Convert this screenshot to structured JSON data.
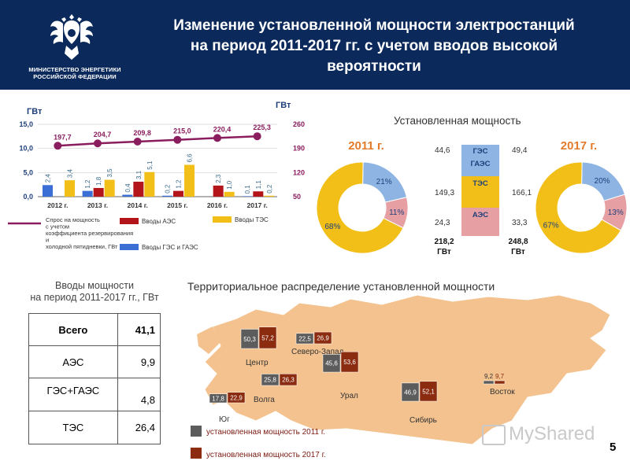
{
  "header": {
    "ministry": "МИНИСТЕРСТВО ЭНЕРГЕТИКИ РОССИЙСКОЙ ФЕДЕРАЦИИ",
    "title_lines": [
      "Изменение установленной мощности электростанций",
      "на период 2011-2017 гг. с учетом вводов высокой",
      "вероятности"
    ],
    "emblem_icon": "double-headed-eagle-icon"
  },
  "chart_data": [
    {
      "type": "bar",
      "unit_left": "ГВт",
      "unit_right": "ГВт",
      "categories": [
        "2012 г.",
        "2013 г.",
        "2014 г.",
        "2015 г.",
        "2016 г.",
        "2017 г."
      ],
      "ylim": [
        0,
        15
      ],
      "yticks": [
        "0,0",
        "5,0",
        "10,0",
        "15,0"
      ],
      "y2lim": [
        50,
        260
      ],
      "y2ticks": [
        "50",
        "120",
        "190",
        "260"
      ],
      "series": [
        {
          "name": "Вводы ГЭС и ГАЭС",
          "color": "#3b6fd6",
          "values": [
            2.4,
            1.2,
            0.4,
            0.2,
            0.0,
            0.1
          ],
          "labels": [
            "2,4",
            "1,2",
            "0,4",
            "0,2",
            "",
            "0,1"
          ]
        },
        {
          "name": "Вводы АЭС",
          "color": "#b3151b",
          "values": [
            0.0,
            1.8,
            3.1,
            1.2,
            2.3,
            1.1
          ],
          "labels": [
            "",
            "1,8",
            "3,1",
            "1,2",
            "2,3",
            "1,1"
          ]
        },
        {
          "name": "Вводы ТЭС",
          "color": "#f2bf18",
          "values": [
            3.4,
            3.5,
            5.1,
            6.6,
            1.0,
            0.2
          ],
          "labels": [
            "3,4",
            "3,5",
            "5,1",
            "6,6",
            "1,0",
            "0,2"
          ]
        }
      ],
      "line_series": {
        "name": "Спрос на мощность с учетом коэффициента резервирования и холодной пятидневки, ГВт",
        "color": "#8a1d5e",
        "values": [
          197.7,
          204.7,
          209.8,
          215.0,
          220.4,
          225.3
        ],
        "labels": [
          "197,7",
          "204,7",
          "209,8",
          "215,0",
          "220,4",
          "225,3"
        ]
      }
    },
    {
      "type": "pie",
      "title": "Установленная мощность",
      "charts": [
        {
          "year": "2011 г.",
          "slices": [
            {
              "name": "ТЭС",
              "value": 68,
              "label": "68%",
              "color": "#f2bf18"
            },
            {
              "name": "ГЭС",
              "value": 21,
              "label": "21%",
              "color": "#8db4e2"
            },
            {
              "name": "АЭС",
              "value": 11,
              "label": "11%",
              "color": "#e6a0a4"
            }
          ]
        },
        {
          "year": "2017 г.",
          "slices": [
            {
              "name": "ТЭС",
              "value": 67,
              "label": "67%",
              "color": "#f2bf18"
            },
            {
              "name": "ГЭС",
              "value": 20,
              "label": "20%",
              "color": "#8db4e2"
            },
            {
              "name": "АЭС",
              "value": 13,
              "label": "13%",
              "color": "#e6a0a4"
            }
          ]
        }
      ],
      "stack": {
        "rows": [
          {
            "name": "ГЭС ГАЭС",
            "left": "44,6",
            "right": "49,4",
            "color": "#8db4e2"
          },
          {
            "name": "ТЭС",
            "left": "149,3",
            "right": "166,1",
            "color": "#f2bf18"
          },
          {
            "name": "АЭС",
            "left": "24,3",
            "right": "33,3",
            "color": "#e6a0a4"
          }
        ],
        "total_left": "218,2 ГВт",
        "total_right": "248,8 ГВт"
      }
    },
    {
      "type": "bar",
      "title": "Территориальное распределение установленной мощности",
      "legend": [
        "установленная мощность 2011 г.",
        "установленная мощность 2017 г."
      ],
      "colors": [
        "#5c5c5c",
        "#8b2b10"
      ],
      "regions": [
        {
          "name": "Центр",
          "v2011": 50.3,
          "v2017": 57.2,
          "l2011": "50,3",
          "l2017": "57,2"
        },
        {
          "name": "Северо-Запад",
          "v2011": 22.5,
          "v2017": 26.9,
          "l2011": "22,5",
          "l2017": "26,9"
        },
        {
          "name": "Урал",
          "v2011": 45.6,
          "v2017": 53.6,
          "l2011": "45,6",
          "l2017": "53,6"
        },
        {
          "name": "Волга",
          "v2011": 25.8,
          "v2017": 26.3,
          "l2011": "25,8",
          "l2017": "26,3"
        },
        {
          "name": "Юг",
          "v2011": 17.8,
          "v2017": 22.9,
          "l2011": "17,8",
          "l2017": "22,9"
        },
        {
          "name": "Сибирь",
          "v2011": 46.9,
          "v2017": 52.1,
          "l2011": "46,9",
          "l2017": "52,1"
        },
        {
          "name": "Восток",
          "v2011": 9.2,
          "v2017": 9.7,
          "l2011": "9,2",
          "l2017": "9,7"
        }
      ]
    }
  ],
  "inputs_table": {
    "title_lines": [
      "Вводы мощности",
      "на период 2011-2017 гг., ГВт"
    ],
    "rows": [
      {
        "label": "Всего",
        "value": "41,1"
      },
      {
        "label": "АЭС",
        "value": "9,9"
      },
      {
        "label": "ГЭС+ГАЭС",
        "value": "4,8"
      },
      {
        "label": "ТЭС",
        "value": "26,4"
      }
    ]
  },
  "watermark": "MyShared",
  "page_number": "5"
}
